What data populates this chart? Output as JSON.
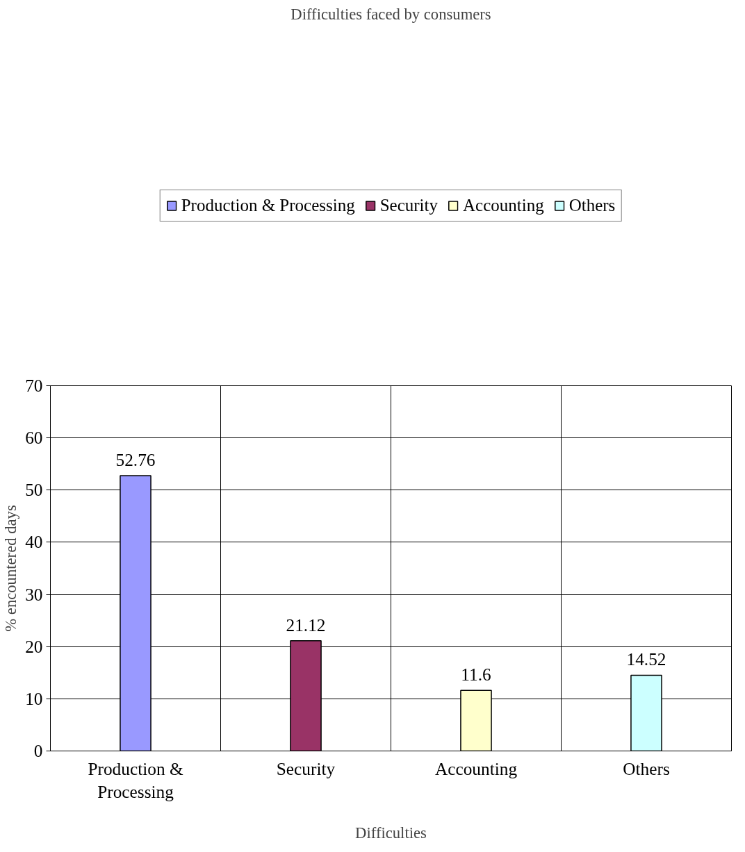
{
  "chart_data": {
    "type": "bar",
    "title": "Difficulties faced by consumers",
    "xlabel": "Difficulties",
    "ylabel": "% encountered days",
    "categories": [
      "Production & Processing",
      "Security",
      "Accounting",
      "Others"
    ],
    "series": [
      {
        "name": "Production & Processing",
        "color": "#9999ff",
        "values": [
          52.76,
          null,
          null,
          null
        ]
      },
      {
        "name": "Security",
        "color": "#993366",
        "values": [
          null,
          21.12,
          null,
          null
        ]
      },
      {
        "name": "Accounting",
        "color": "#ffffcc",
        "values": [
          null,
          null,
          11.6,
          null
        ]
      },
      {
        "name": "Others",
        "color": "#ccffff",
        "values": [
          null,
          null,
          null,
          14.52
        ]
      }
    ],
    "ylim": [
      0,
      70
    ],
    "yticks": [
      0,
      10,
      20,
      30,
      40,
      50,
      60,
      70
    ],
    "grid": true,
    "legend": "top",
    "data_labels": true
  }
}
